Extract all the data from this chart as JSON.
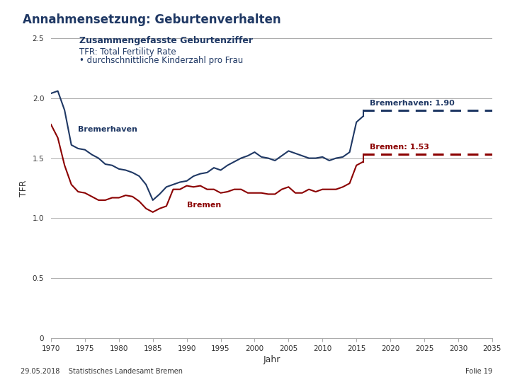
{
  "title": "Annahmensetzung: Geburtenverhalten",
  "subtitle_line1": "Zusammengefasste Geburtenziffer",
  "subtitle_line2": "TFR: Total Fertility Rate",
  "subtitle_line3": "• durchschnittliche Kinderzahl pro Frau",
  "xlabel": "Jahr",
  "ylabel": "TFR",
  "xlim": [
    1970,
    2035
  ],
  "ylim": [
    0,
    2.5
  ],
  "yticks": [
    0,
    0.5,
    1.0,
    1.5,
    2.0,
    2.5
  ],
  "xticks": [
    1970,
    1975,
    1980,
    1985,
    1990,
    1995,
    2000,
    2005,
    2010,
    2015,
    2020,
    2025,
    2030,
    2035
  ],
  "title_color": "#1F3864",
  "subtitle_color": "#1F3864",
  "footer_left": "29.05.2018    Statistisches Landesamt Bremen",
  "footer_right": "Folie 19",
  "bremerhaven_color": "#1F3864",
  "bremen_color": "#8B0000",
  "forecast_bremerhaven": 1.9,
  "forecast_bremen": 1.53,
  "label_bremerhaven": "Bremerhaven: 1.90",
  "label_bremen": "Bremen: 1.53",
  "forecast_start_year": 2016,
  "forecast_end_year": 2035,
  "bremerhaven_years": [
    1970,
    1971,
    1972,
    1973,
    1974,
    1975,
    1976,
    1977,
    1978,
    1979,
    1980,
    1981,
    1982,
    1983,
    1984,
    1985,
    1986,
    1987,
    1988,
    1989,
    1990,
    1991,
    1992,
    1993,
    1994,
    1995,
    1996,
    1997,
    1998,
    1999,
    2000,
    2001,
    2002,
    2003,
    2004,
    2005,
    2006,
    2007,
    2008,
    2009,
    2010,
    2011,
    2012,
    2013,
    2014,
    2015,
    2016
  ],
  "bremerhaven_values": [
    2.04,
    2.06,
    1.9,
    1.61,
    1.58,
    1.57,
    1.53,
    1.5,
    1.45,
    1.44,
    1.41,
    1.4,
    1.38,
    1.35,
    1.28,
    1.15,
    1.2,
    1.26,
    1.28,
    1.3,
    1.31,
    1.35,
    1.37,
    1.38,
    1.42,
    1.4,
    1.44,
    1.47,
    1.5,
    1.52,
    1.55,
    1.51,
    1.5,
    1.48,
    1.52,
    1.56,
    1.54,
    1.52,
    1.5,
    1.5,
    1.51,
    1.48,
    1.5,
    1.51,
    1.55,
    1.8,
    1.85
  ],
  "bremen_years": [
    1970,
    1971,
    1972,
    1973,
    1974,
    1975,
    1976,
    1977,
    1978,
    1979,
    1980,
    1981,
    1982,
    1983,
    1984,
    1985,
    1986,
    1987,
    1988,
    1989,
    1990,
    1991,
    1992,
    1993,
    1994,
    1995,
    1996,
    1997,
    1998,
    1999,
    2000,
    2001,
    2002,
    2003,
    2004,
    2005,
    2006,
    2007,
    2008,
    2009,
    2010,
    2011,
    2012,
    2013,
    2014,
    2015,
    2016
  ],
  "bremen_values": [
    1.78,
    1.67,
    1.44,
    1.28,
    1.22,
    1.21,
    1.18,
    1.15,
    1.15,
    1.17,
    1.17,
    1.19,
    1.18,
    1.14,
    1.08,
    1.05,
    1.08,
    1.1,
    1.24,
    1.24,
    1.27,
    1.26,
    1.27,
    1.24,
    1.24,
    1.21,
    1.22,
    1.24,
    1.24,
    1.21,
    1.21,
    1.21,
    1.2,
    1.2,
    1.24,
    1.26,
    1.21,
    1.21,
    1.24,
    1.22,
    1.24,
    1.24,
    1.24,
    1.26,
    1.29,
    1.44,
    1.47
  ],
  "background_color": "#FFFFFF",
  "grid_color": "#AAAAAA",
  "header_line_color": "#4472C4",
  "footer_line_color": "#4472C4",
  "gray_line_color": "#999999"
}
